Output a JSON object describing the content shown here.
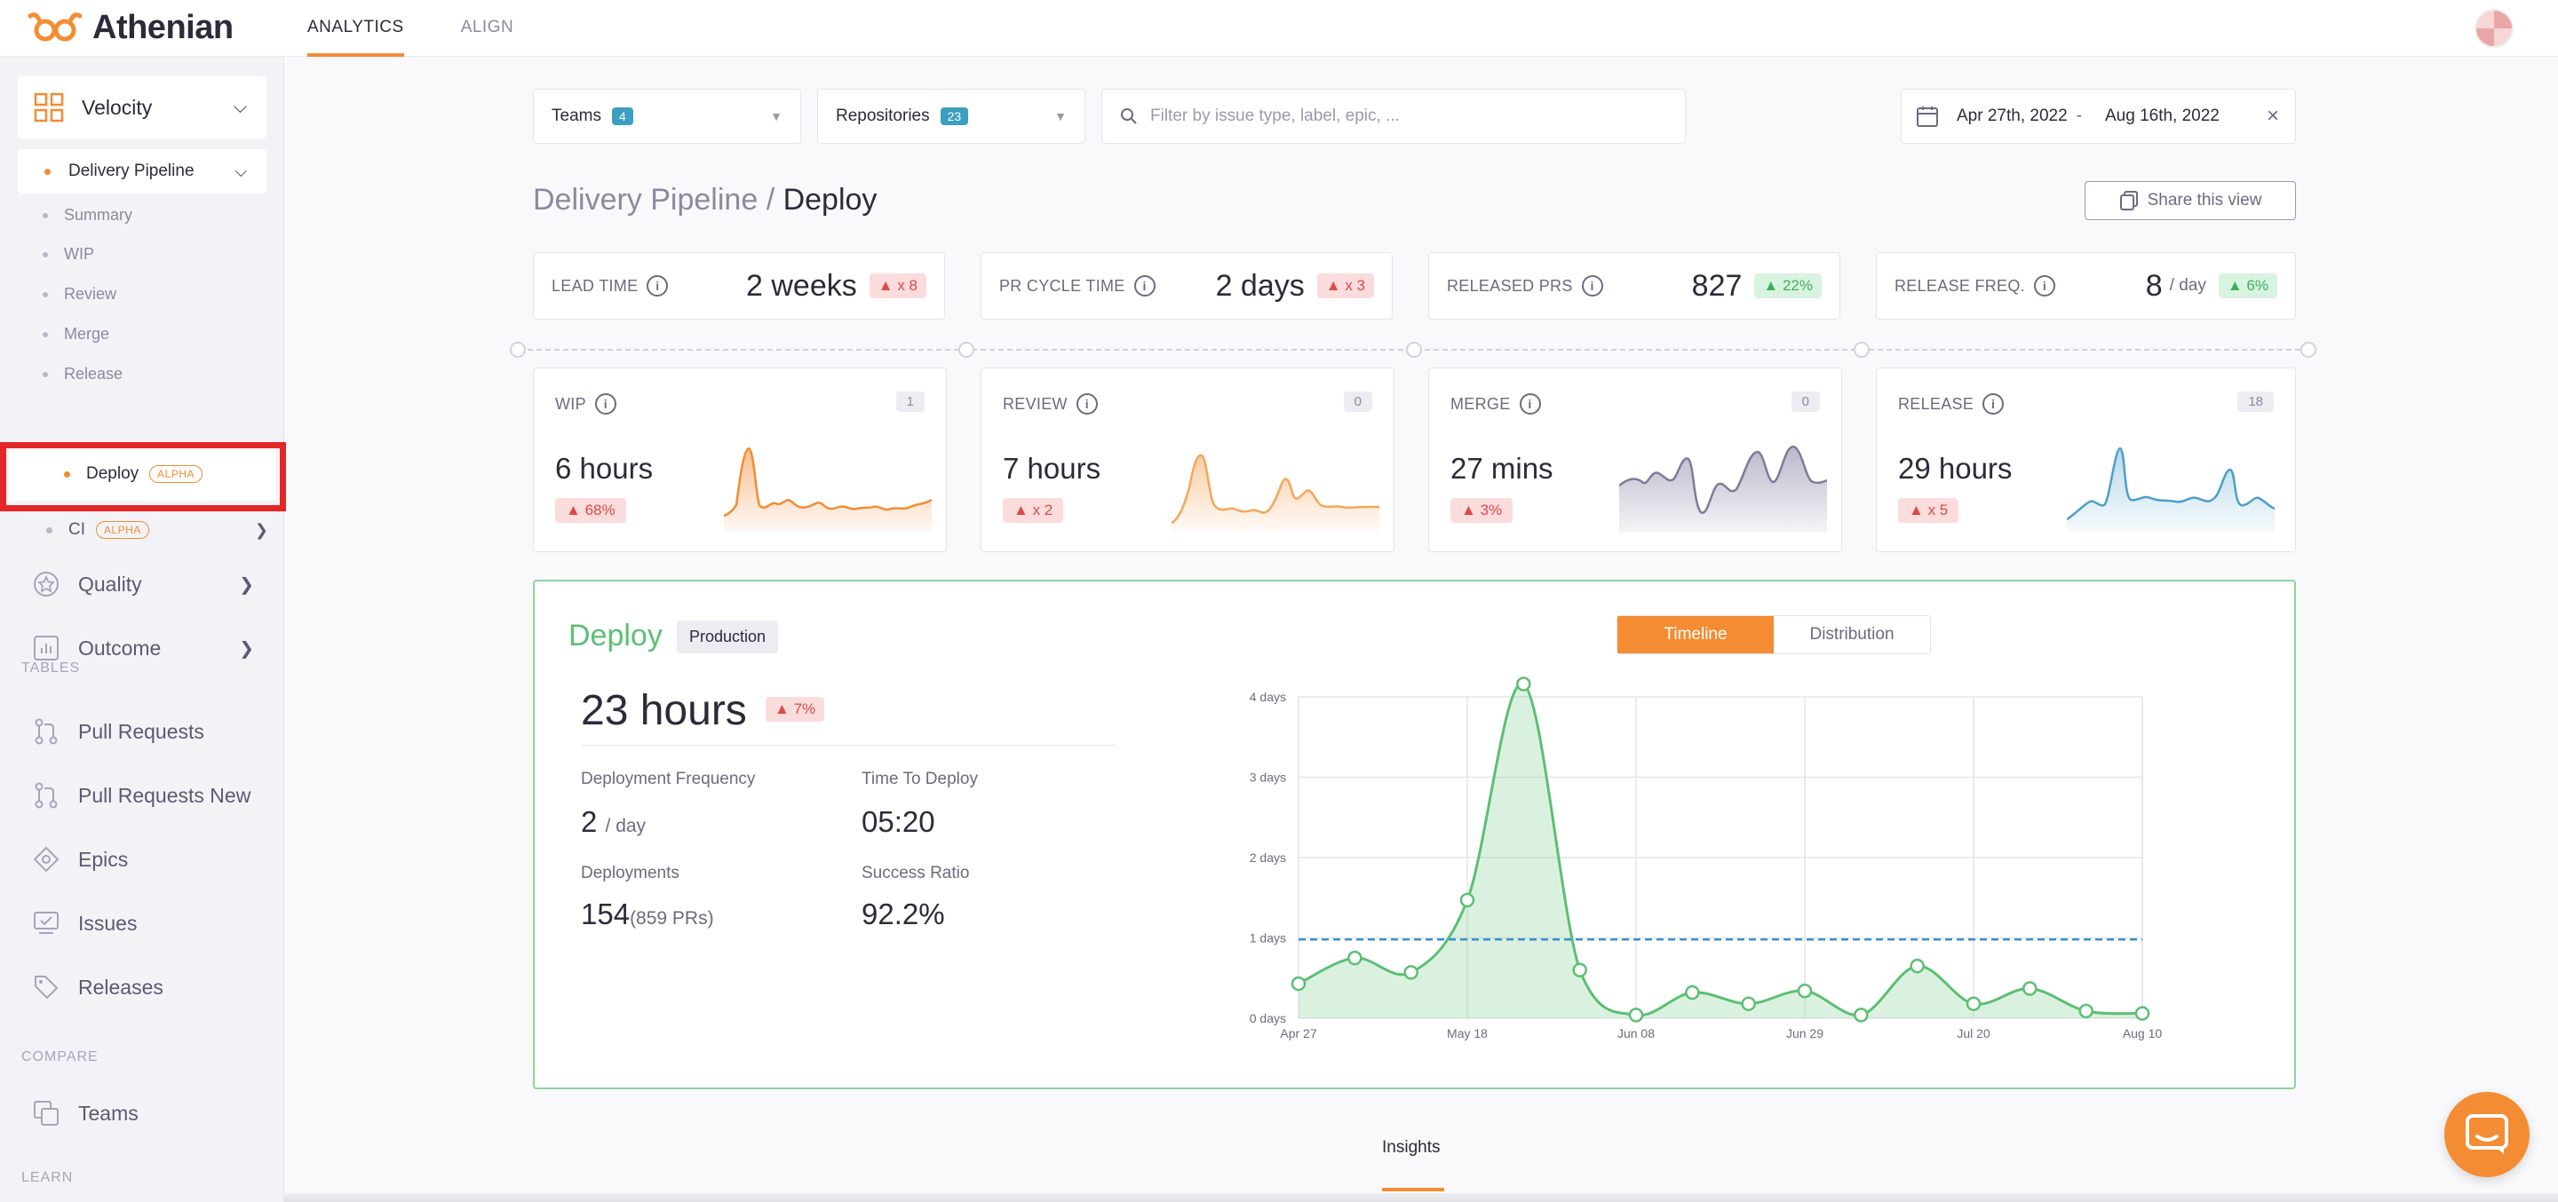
{
  "brand": {
    "name": "Athenian",
    "accent": "#f48c33"
  },
  "topnav": {
    "items": [
      {
        "label": "ANALYTICS"
      },
      {
        "label": "ALIGN"
      }
    ]
  },
  "sidebar": {
    "velocity": "Velocity",
    "delivery_pipeline": "Delivery Pipeline",
    "sub_items": [
      "Summary",
      "WIP",
      "Review",
      "Merge",
      "Release"
    ],
    "deploy": "Deploy",
    "alpha": "ALPHA",
    "ci": "CI",
    "quality": "Quality",
    "outcome": "Outcome",
    "tables_header": "TABLES",
    "tables": [
      "Pull Requests",
      "Pull Requests New",
      "Epics",
      "Issues",
      "Releases"
    ],
    "compare_header": "COMPARE",
    "teams": "Teams",
    "learn_header": "LEARN"
  },
  "filters": {
    "teams_label": "Teams",
    "teams_count": "4",
    "repos_label": "Repositories",
    "repos_count": "23",
    "search_placeholder": "Filter by issue type, label, epic, ...",
    "date_from": "Apr 27th, 2022",
    "date_sep": "-",
    "date_to": "Aug 16th, 2022"
  },
  "page": {
    "crumb": "Delivery Pipeline",
    "sep": "/",
    "title": "Deploy",
    "share": "Share this view"
  },
  "kpis": [
    {
      "label": "LEAD TIME",
      "value": "2 weeks",
      "unit": "",
      "badge": "x 8",
      "trend": "up-bad"
    },
    {
      "label": "PR CYCLE TIME",
      "value": "2 days",
      "unit": "",
      "badge": "x 3",
      "trend": "up-bad"
    },
    {
      "label": "RELEASED PRS",
      "value": "827",
      "unit": "",
      "badge": "22%",
      "trend": "up-good"
    },
    {
      "label": "RELEASE FREQ.",
      "value": "8",
      "unit": "/ day",
      "badge": "6%",
      "trend": "up-good"
    }
  ],
  "stages": [
    {
      "label": "WIP",
      "count": "1",
      "value": "6 hours",
      "badge": "68%",
      "color": "#f48c33"
    },
    {
      "label": "REVIEW",
      "count": "0",
      "value": "7 hours",
      "badge": "x 2",
      "color": "#f5a65b"
    },
    {
      "label": "MERGE",
      "count": "0",
      "value": "27 mins",
      "badge": "3%",
      "color": "#8a8aa8"
    },
    {
      "label": "RELEASE",
      "count": "18",
      "value": "29 hours",
      "badge": "x 5",
      "color": "#4d9fc9"
    }
  ],
  "deploy": {
    "title": "Deploy",
    "env": "Production",
    "big_value": "23 hours",
    "big_badge": "7%",
    "freq_label": "Deployment Frequency",
    "freq_value": "2",
    "freq_unit": "/ day",
    "ttd_label": "Time To Deploy",
    "ttd_value": "05:20",
    "deployments_label": "Deployments",
    "deployments_value": "154",
    "deployments_prs": "(859 PRs)",
    "success_label": "Success Ratio",
    "success_value": "92.2%",
    "toggle": {
      "timeline": "Timeline",
      "distribution": "Distribution"
    }
  },
  "chart_data": {
    "type": "area",
    "x": [
      "Apr 27",
      "May 4",
      "May 11",
      "May 18",
      "May 25",
      "Jun 1",
      "Jun 8",
      "Jun 15",
      "Jun 22",
      "Jun 29",
      "Jul 6",
      "Jul 13",
      "Jul 20",
      "Jul 27",
      "Aug 3",
      "Aug 10"
    ],
    "x_tick_labels": [
      "Apr 27",
      "May 18",
      "Jun 08",
      "Jun 29",
      "Jul 20",
      "Aug 10"
    ],
    "y_tick_labels": [
      "0 days",
      "1 days",
      "2 days",
      "3 days",
      "4 days"
    ],
    "series": [
      {
        "values": [
          0.43,
          0.75,
          0.57,
          1.47,
          4.16,
          0.6,
          0.04,
          0.32,
          0.18,
          0.34,
          0.04,
          0.65,
          0.18,
          0.37,
          0.09,
          0.06
        ]
      }
    ],
    "reference_line": 0.98,
    "ylim": [
      0,
      4
    ],
    "color": "#5cbf74",
    "reference_color": "#3b8fd0"
  },
  "insights": "Insights"
}
